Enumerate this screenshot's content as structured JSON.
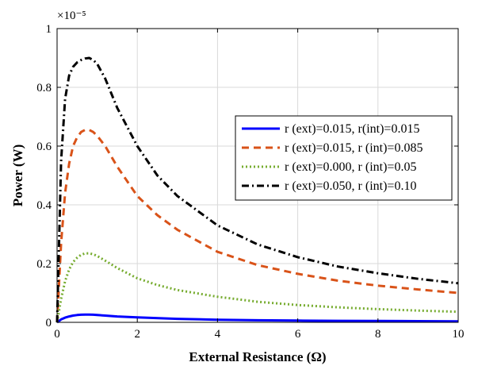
{
  "chart_data": {
    "type": "line",
    "xlabel": "External Resistance (Ω)",
    "ylabel": "Power (W)",
    "xlim": [
      0,
      10
    ],
    "ylim": [
      0,
      1
    ],
    "y_scale_label": "×10⁻⁵",
    "x_ticks": [
      "0",
      "2",
      "4",
      "6",
      "8",
      "10"
    ],
    "y_ticks": [
      "0",
      "0.2",
      "0.4",
      "0.6",
      "0.8",
      "1"
    ],
    "grid": true,
    "legend_position": "center-right",
    "series": [
      {
        "name": "r (ext)=0.015, r(int)=0.015",
        "color": "#0000ff",
        "style": "solid",
        "x": [
          0,
          0.1,
          0.2,
          0.3,
          0.4,
          0.5,
          0.6,
          0.7,
          0.8,
          0.9,
          1.0,
          1.2,
          1.5,
          2,
          3,
          4,
          5,
          6,
          7,
          8,
          9,
          10
        ],
        "y": [
          0,
          0.01,
          0.016,
          0.02,
          0.023,
          0.025,
          0.026,
          0.0265,
          0.0265,
          0.026,
          0.025,
          0.023,
          0.02,
          0.017,
          0.012,
          0.009,
          0.007,
          0.006,
          0.005,
          0.0045,
          0.004,
          0.0035
        ]
      },
      {
        "name": "r (ext)=0.015, r (int)=0.085",
        "color": "#d95319",
        "style": "dashed",
        "x": [
          0,
          0.1,
          0.2,
          0.3,
          0.4,
          0.5,
          0.6,
          0.7,
          0.8,
          0.9,
          1.0,
          1.2,
          1.5,
          2,
          2.5,
          3,
          4,
          5,
          6,
          7,
          8,
          9,
          10
        ],
        "y": [
          0,
          0.27,
          0.44,
          0.54,
          0.6,
          0.63,
          0.648,
          0.655,
          0.655,
          0.648,
          0.635,
          0.6,
          0.53,
          0.43,
          0.365,
          0.315,
          0.24,
          0.195,
          0.165,
          0.142,
          0.125,
          0.112,
          0.1
        ]
      },
      {
        "name": "r (ext)=0.000, r (int)=0.05",
        "color": "#77ac30",
        "style": "dotted",
        "x": [
          0,
          0.1,
          0.2,
          0.3,
          0.4,
          0.5,
          0.6,
          0.7,
          0.8,
          0.9,
          1.0,
          1.2,
          1.5,
          2,
          2.5,
          3,
          4,
          5,
          6,
          7,
          8,
          9,
          10
        ],
        "y": [
          0,
          0.08,
          0.14,
          0.18,
          0.205,
          0.22,
          0.23,
          0.235,
          0.235,
          0.232,
          0.226,
          0.21,
          0.185,
          0.15,
          0.127,
          0.11,
          0.087,
          0.07,
          0.059,
          0.051,
          0.045,
          0.04,
          0.036
        ]
      },
      {
        "name": "r (ext)=0.050, r (int)=0.10",
        "color": "#000000",
        "style": "dashdot",
        "x": [
          0,
          0.1,
          0.2,
          0.3,
          0.4,
          0.5,
          0.6,
          0.7,
          0.8,
          0.9,
          1.0,
          1.2,
          1.5,
          2,
          2.5,
          3,
          4,
          5,
          6,
          7,
          8,
          9,
          10
        ],
        "y": [
          0,
          0.55,
          0.76,
          0.84,
          0.87,
          0.885,
          0.893,
          0.898,
          0.9,
          0.893,
          0.88,
          0.83,
          0.73,
          0.6,
          0.5,
          0.43,
          0.33,
          0.265,
          0.222,
          0.19,
          0.167,
          0.148,
          0.133
        ]
      }
    ]
  }
}
